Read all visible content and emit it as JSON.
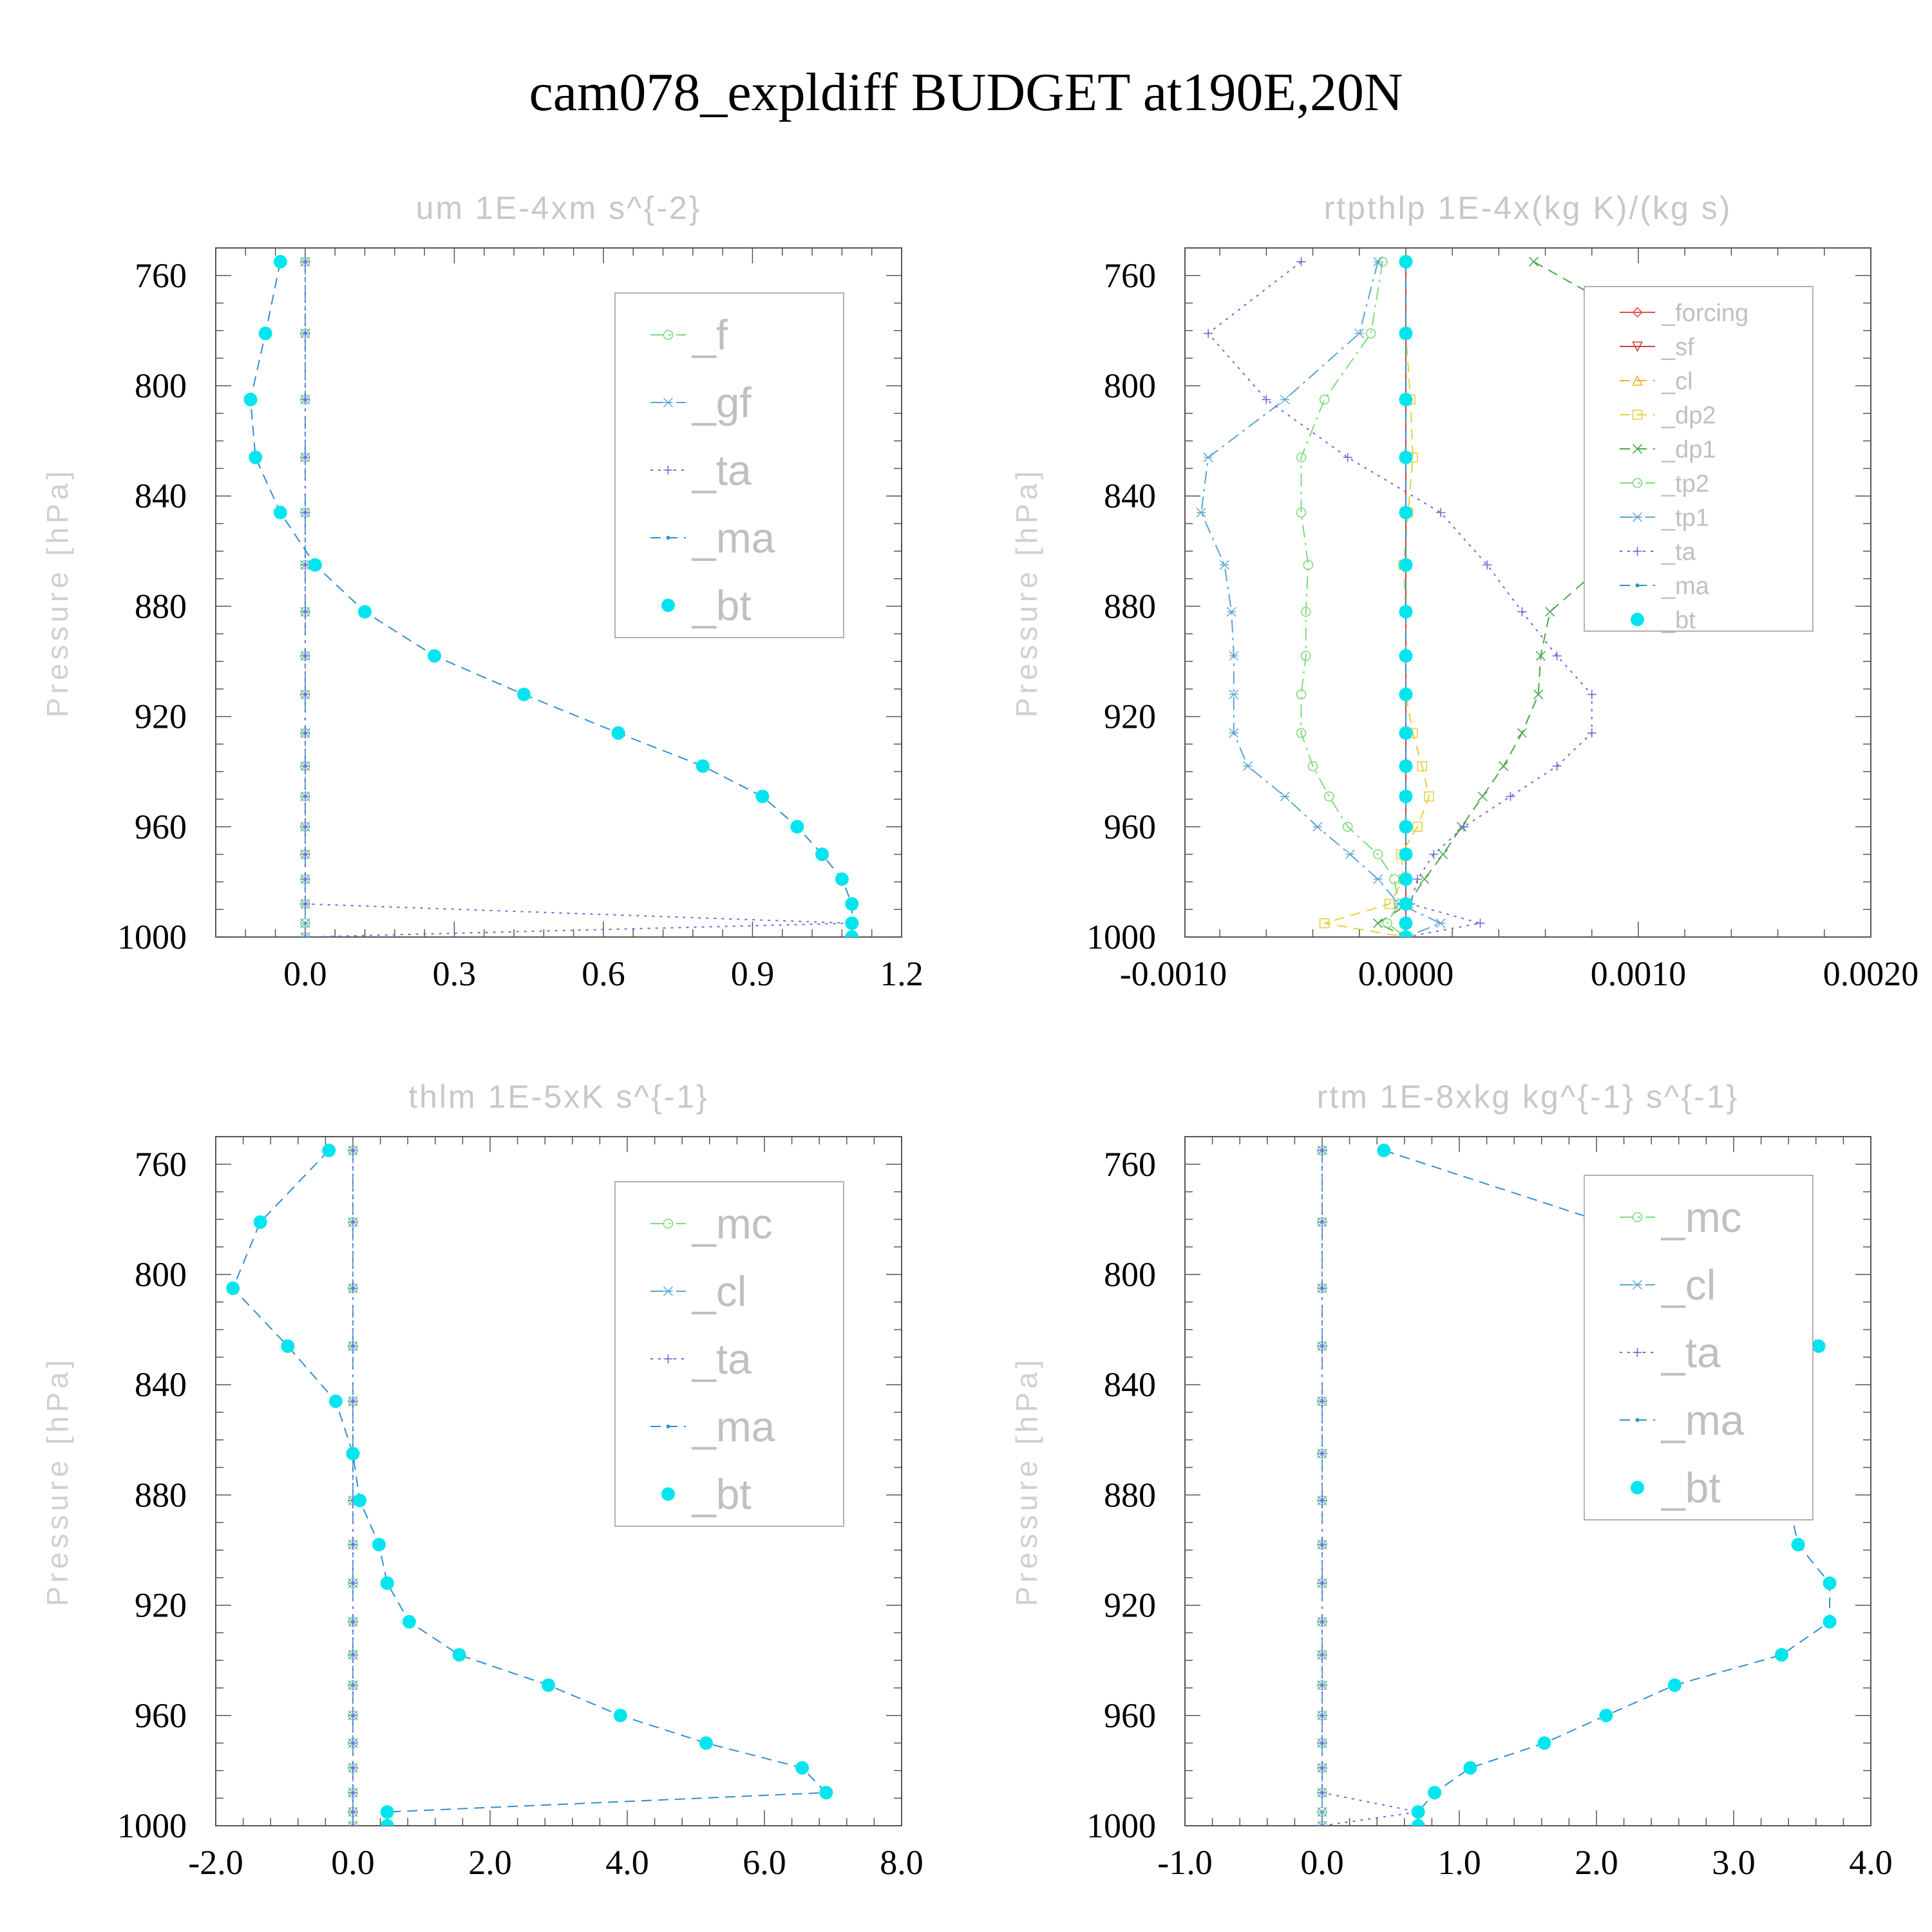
{
  "title": "cam078_expldiff  BUDGET at190E,20N",
  "colors": {
    "f": "#7ddc7d",
    "gf": "#5aa5d2",
    "ta": "#6b6bdc",
    "ma": "#2f8fd0",
    "bt": "#00e5ee",
    "forcing": "#e05050",
    "sf": "#d04040",
    "cl": "#f0b030",
    "dp2": "#e8d040",
    "dp1": "#4aa84a",
    "tp2": "#7ddc7d",
    "tp1": "#5aa5d2",
    "mc": "#7ddc7d",
    "cl_blue": "#5aa5d2"
  },
  "chart_data": [
    {
      "type": "line",
      "title": "um  1E-4xm s^{-2}",
      "ylabel": "Pressure [hPa]",
      "xlim": [
        -0.18,
        1.2
      ],
      "ylim": [
        1000,
        750
      ],
      "ylog": false,
      "xticks": [
        "0.0",
        "0.3",
        "0.6",
        "0.9",
        "1.2"
      ],
      "xtick_values": [
        0.0,
        0.3,
        0.6,
        0.9,
        1.2
      ],
      "yticks": [
        "760",
        "800",
        "840",
        "880",
        "920",
        "960",
        "1000"
      ],
      "ytick_values": [
        760,
        800,
        840,
        880,
        920,
        960,
        1000
      ],
      "legend_position": "top-right",
      "pressure": [
        755,
        781,
        805,
        826,
        846,
        865,
        882,
        898,
        912,
        926,
        938,
        949,
        960,
        970,
        979,
        988,
        995,
        1000
      ],
      "series": [
        {
          "name": "_f",
          "color_key": "f",
          "style": "dashdot",
          "marker": "circle",
          "values": [
            0,
            0,
            0,
            0,
            0,
            0,
            0,
            0,
            0,
            0,
            0,
            0,
            0,
            0,
            0,
            0,
            0,
            0
          ]
        },
        {
          "name": "_gf",
          "color_key": "gf",
          "style": "dashdot",
          "marker": "star",
          "values": [
            0,
            0,
            0,
            0,
            0,
            0,
            0,
            0,
            0,
            0,
            0,
            0,
            0,
            0,
            0,
            0,
            0,
            0
          ]
        },
        {
          "name": "_ta",
          "color_key": "ta",
          "style": "dotted",
          "marker": "plus",
          "values": [
            0,
            0,
            0,
            0,
            0,
            0,
            0,
            0,
            0,
            0,
            0,
            0,
            0,
            0,
            0,
            0,
            1.1,
            0.0
          ]
        },
        {
          "name": "_ma",
          "color_key": "ma",
          "style": "dashed",
          "marker": "dot",
          "values": [
            -0.05,
            -0.08,
            -0.11,
            -0.1,
            -0.05,
            0.02,
            0.12,
            0.26,
            0.44,
            0.63,
            0.8,
            0.92,
            0.99,
            1.04,
            1.08,
            1.1,
            1.1,
            1.1
          ]
        },
        {
          "name": "_bt",
          "color_key": "bt",
          "style": "none",
          "marker": "filled",
          "values": [
            -0.05,
            -0.08,
            -0.11,
            -0.1,
            -0.05,
            0.02,
            0.12,
            0.26,
            0.44,
            0.63,
            0.8,
            0.92,
            0.99,
            1.04,
            1.08,
            1.1,
            1.1,
            1.1
          ]
        }
      ]
    },
    {
      "type": "line",
      "title": "rtpthlp  1E-4x(kg K)/(kg s)",
      "ylabel": "Pressure [hPa]",
      "xlim": [
        -0.00095,
        0.002
      ],
      "ylim": [
        1000,
        750
      ],
      "ylog": false,
      "xticks": [
        "-0.0010",
        "0.0000",
        "0.0010",
        "0.0020"
      ],
      "xtick_values": [
        -0.001,
        0.0,
        0.001,
        0.002
      ],
      "yticks": [
        "760",
        "800",
        "840",
        "880",
        "920",
        "960",
        "1000"
      ],
      "ytick_values": [
        760,
        800,
        840,
        880,
        920,
        960,
        1000
      ],
      "legend_position": "top-right",
      "pressure": [
        755,
        781,
        805,
        826,
        846,
        865,
        882,
        898,
        912,
        926,
        938,
        949,
        960,
        970,
        979,
        988,
        995,
        1000
      ],
      "series": [
        {
          "name": "_forcing",
          "color_key": "forcing",
          "style": "solid",
          "marker": "diamond",
          "values": [
            0,
            0,
            0,
            0,
            0,
            0,
            0,
            0,
            0,
            0,
            0,
            0,
            0,
            0,
            0,
            0,
            0,
            0
          ]
        },
        {
          "name": "_sf",
          "color_key": "sf",
          "style": "solid",
          "marker": "tri-down",
          "values": [
            0,
            0,
            0,
            0,
            0,
            0,
            0,
            0,
            0,
            0,
            0,
            0,
            0,
            0,
            0,
            0,
            0,
            0
          ]
        },
        {
          "name": "_cl",
          "color_key": "cl",
          "style": "dashed",
          "marker": "tri-up",
          "values": [
            0,
            0,
            0,
            0,
            0,
            0,
            0,
            0,
            0,
            0,
            0,
            0,
            0,
            0,
            0,
            0,
            0,
            0
          ]
        },
        {
          "name": "_dp2",
          "color_key": "dp2",
          "style": "dashed",
          "marker": "square",
          "values": [
            0,
            0,
            2e-05,
            3e-05,
            1e-05,
            -1e-05,
            0,
            0,
            0,
            3e-05,
            7e-05,
            0.0001,
            5e-05,
            -2e-05,
            -1e-05,
            -7e-05,
            -0.00035,
            0
          ]
        },
        {
          "name": "_dp1",
          "color_key": "dp1",
          "style": "dashed",
          "marker": "x",
          "values": [
            0.00055,
            0.0011,
            0.0016,
            0.0016,
            0.0012,
            0.00085,
            0.00062,
            0.00058,
            0.00057,
            0.0005,
            0.00042,
            0.00033,
            0.00024,
            0.00016,
            8e-05,
            1e-05,
            -0.00012,
            0
          ]
        },
        {
          "name": "_tp2",
          "color_key": "tp2",
          "style": "dashdot",
          "marker": "circle",
          "values": [
            -0.0001,
            -0.00015,
            -0.00035,
            -0.00045,
            -0.00045,
            -0.00042,
            -0.00043,
            -0.00043,
            -0.00045,
            -0.00045,
            -0.0004,
            -0.00033,
            -0.00025,
            -0.00012,
            -5e-05,
            -3e-05,
            -8e-05,
            0
          ]
        },
        {
          "name": "_tp1",
          "color_key": "tp1",
          "style": "dashdot",
          "marker": "star",
          "values": [
            -0.00012,
            -0.0002,
            -0.00052,
            -0.00085,
            -0.00088,
            -0.00078,
            -0.00075,
            -0.00074,
            -0.00074,
            -0.00074,
            -0.00068,
            -0.00052,
            -0.00038,
            -0.00024,
            -0.00012,
            -3e-05,
            0.00015,
            0
          ]
        },
        {
          "name": "_ta",
          "color_key": "ta",
          "style": "dotted",
          "marker": "plus",
          "values": [
            -0.00045,
            -0.00085,
            -0.0006,
            -0.00025,
            0.00015,
            0.00035,
            0.0005,
            0.00065,
            0.0008,
            0.0008,
            0.00065,
            0.00045,
            0.00025,
            0.00012,
            5e-05,
            2e-05,
            0.00032,
            0
          ]
        },
        {
          "name": "_ma",
          "color_key": "ma",
          "style": "dashed",
          "marker": "dot",
          "values": [
            0,
            0,
            0,
            0,
            0,
            0,
            0,
            0,
            0,
            0,
            0,
            0,
            0,
            0,
            0,
            0,
            0,
            0
          ]
        },
        {
          "name": "_bt",
          "color_key": "bt",
          "style": "none",
          "marker": "filled",
          "values": [
            0,
            0,
            0,
            0,
            0,
            0,
            0,
            0,
            0,
            0,
            0,
            0,
            0,
            0,
            0,
            0,
            0,
            0
          ]
        }
      ]
    },
    {
      "type": "line",
      "title": "thlm  1E-5xK s^{-1}",
      "ylabel": "Pressure [hPa]",
      "xlim": [
        -2.0,
        8.0
      ],
      "ylim": [
        1000,
        750
      ],
      "ylog": false,
      "xticks": [
        "-2.0",
        "0.0",
        "2.0",
        "4.0",
        "6.0",
        "8.0"
      ],
      "xtick_values": [
        -2.0,
        0.0,
        2.0,
        4.0,
        6.0,
        8.0
      ],
      "yticks": [
        "760",
        "800",
        "840",
        "880",
        "920",
        "960",
        "1000"
      ],
      "ytick_values": [
        760,
        800,
        840,
        880,
        920,
        960,
        1000
      ],
      "legend_position": "top-right",
      "pressure": [
        755,
        781,
        805,
        826,
        846,
        865,
        882,
        898,
        912,
        926,
        938,
        949,
        960,
        970,
        979,
        988,
        995,
        1000
      ],
      "series": [
        {
          "name": "_mc",
          "color_key": "mc",
          "style": "dashdot",
          "marker": "circle",
          "values": [
            0,
            0,
            0,
            0,
            0,
            0,
            0,
            0,
            0,
            0,
            0,
            0,
            0,
            0,
            0,
            0,
            0,
            0
          ]
        },
        {
          "name": "_cl",
          "color_key": "cl_blue",
          "style": "dashdot",
          "marker": "star",
          "values": [
            0,
            0,
            0,
            0,
            0,
            0,
            0,
            0,
            0,
            0,
            0,
            0,
            0,
            0,
            0,
            0,
            0,
            0
          ]
        },
        {
          "name": "_ta",
          "color_key": "ta",
          "style": "dotted",
          "marker": "plus",
          "values": [
            0,
            0,
            0,
            0,
            0,
            0,
            0,
            0,
            0,
            0,
            0,
            0,
            0,
            0,
            0,
            0,
            0,
            0
          ]
        },
        {
          "name": "_ma",
          "color_key": "ma",
          "style": "dashed",
          "marker": "dot",
          "values": [
            -0.35,
            -1.35,
            -1.75,
            -0.95,
            -0.25,
            0.0,
            0.1,
            0.38,
            0.5,
            0.82,
            1.55,
            2.85,
            3.9,
            5.15,
            6.55,
            6.9,
            0.5,
            0.5
          ]
        },
        {
          "name": "_bt",
          "color_key": "bt",
          "style": "none",
          "marker": "filled",
          "values": [
            -0.35,
            -1.35,
            -1.75,
            -0.95,
            -0.25,
            0.0,
            0.1,
            0.38,
            0.5,
            0.82,
            1.55,
            2.85,
            3.9,
            5.15,
            6.55,
            6.9,
            0.5,
            0.5
          ]
        }
      ]
    },
    {
      "type": "line",
      "title": "rtm  1E-8xkg kg^{-1} s^{-1}",
      "ylabel": "Pressure [hPa]",
      "xlim": [
        -1.0,
        4.0
      ],
      "ylim": [
        1000,
        750
      ],
      "ylog": false,
      "xticks": [
        "-1.0",
        "0.0",
        "1.0",
        "2.0",
        "3.0",
        "4.0"
      ],
      "xtick_values": [
        -1.0,
        0.0,
        1.0,
        2.0,
        3.0,
        4.0
      ],
      "yticks": [
        "760",
        "800",
        "840",
        "880",
        "920",
        "960",
        "1000"
      ],
      "ytick_values": [
        760,
        800,
        840,
        880,
        920,
        960,
        1000
      ],
      "legend_position": "top-right",
      "pressure": [
        755,
        781,
        805,
        826,
        846,
        865,
        882,
        898,
        912,
        926,
        938,
        949,
        960,
        970,
        979,
        988,
        995,
        1000
      ],
      "series": [
        {
          "name": "_mc",
          "color_key": "mc",
          "style": "dashdot",
          "marker": "circle",
          "values": [
            0,
            0,
            0,
            0,
            0,
            0,
            0,
            0,
            0,
            0,
            0,
            0,
            0,
            0,
            0,
            0,
            0,
            0
          ]
        },
        {
          "name": "_cl",
          "color_key": "cl_blue",
          "style": "dashdot",
          "marker": "star",
          "values": [
            0,
            0,
            0,
            0,
            0,
            0,
            0,
            0,
            0,
            0,
            0,
            0,
            0,
            0,
            0,
            0,
            0,
            0
          ]
        },
        {
          "name": "_ta",
          "color_key": "ta",
          "style": "dotted",
          "marker": "plus",
          "values": [
            0,
            0,
            0,
            0,
            0,
            0,
            0,
            0,
            0,
            0,
            0,
            0,
            0,
            0,
            0,
            0,
            0.7,
            0.0
          ]
        },
        {
          "name": "_ma",
          "color_key": "ma",
          "style": "dashed",
          "marker": "dot",
          "values": [
            0.45,
            2.05,
            3.4,
            3.62,
            3.05,
            3.02,
            3.4,
            3.47,
            3.7,
            3.7,
            3.35,
            2.57,
            2.07,
            1.62,
            1.08,
            0.82,
            0.7,
            0.7
          ]
        },
        {
          "name": "_bt",
          "color_key": "bt",
          "style": "none",
          "marker": "filled",
          "values": [
            0.45,
            2.05,
            3.4,
            3.62,
            3.05,
            3.02,
            3.4,
            3.47,
            3.7,
            3.7,
            3.35,
            2.57,
            2.07,
            1.62,
            1.08,
            0.82,
            0.7,
            0.7
          ]
        }
      ]
    }
  ]
}
